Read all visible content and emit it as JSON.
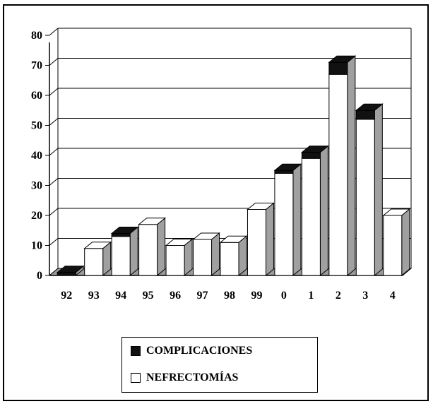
{
  "chart_data": {
    "type": "bar",
    "stacked": true,
    "three_d": true,
    "categories": [
      "92",
      "93",
      "94",
      "95",
      "96",
      "97",
      "98",
      "99",
      "0",
      "1",
      "2",
      "3",
      "4"
    ],
    "series": [
      {
        "name": "NEFRECTOMÍAS",
        "values": [
          0,
          9,
          13,
          17,
          10,
          12,
          11,
          22,
          34,
          39,
          67,
          52,
          20
        ],
        "color": "#ffffff"
      },
      {
        "name": "COMPLICACIONES",
        "values": [
          1,
          0,
          1,
          0,
          0,
          0,
          0,
          0,
          1,
          2,
          4,
          3,
          0
        ],
        "color": "#111111"
      }
    ],
    "ylim": [
      0,
      80
    ],
    "yticks": [
      0,
      10,
      20,
      30,
      40,
      50,
      60,
      70,
      80
    ],
    "grid": true,
    "legend_position": "bottom",
    "side_color": "#a0a0a0",
    "floor_color": "#9a9a9a"
  },
  "legend": {
    "items": [
      {
        "label": "COMPLICACIONES",
        "color": "#111111"
      },
      {
        "label": "NEFRECTOMÍAS",
        "color": "#ffffff"
      }
    ]
  }
}
